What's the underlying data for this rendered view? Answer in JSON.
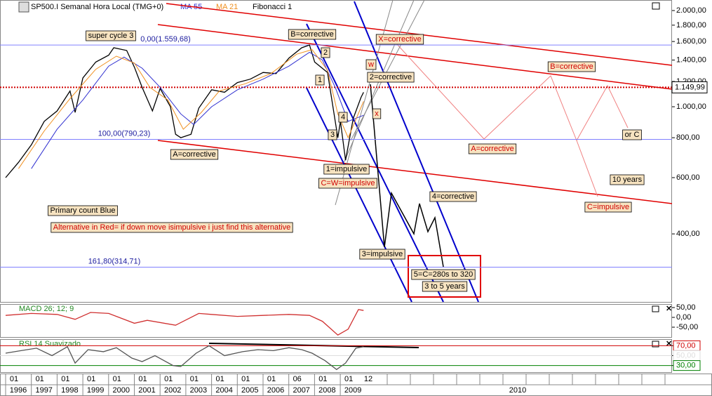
{
  "toolbar": {
    "fibonacci": "Fibonacci 1"
  },
  "chart_data": [
    {
      "type": "line",
      "title": "SP500.I Semanal Hora Local (TMG+0)",
      "log_scale": true,
      "xlim": [
        1996,
        2010
      ],
      "ylim": [
        245,
        2158
      ],
      "yticks": [
        {
          "value": 2000,
          "label": "2.000,00"
        },
        {
          "value": 1800,
          "label": "1.800,00"
        },
        {
          "value": 1600,
          "label": "1.600,00"
        },
        {
          "value": 1400,
          "label": "1.400,00"
        },
        {
          "value": 1200,
          "label": "1.200,00"
        },
        {
          "value": 1000,
          "label": "1.000,00"
        },
        {
          "value": 800,
          "label": "800,00"
        },
        {
          "value": 600,
          "label": "600,00"
        },
        {
          "value": 400,
          "label": "400,00"
        }
      ],
      "series": [
        {
          "color": "#000000",
          "x": [
            1996.0,
            1996.5,
            1997.0,
            1997.5,
            1998.0,
            1998.5,
            1998.7,
            1999.0,
            1999.5,
            2000.0,
            2000.2,
            2000.7,
            2001.0,
            2001.3,
            2001.7,
            2002.0,
            2002.4,
            2002.6,
            2002.8,
            2003.2,
            2003.5,
            2004.0,
            2004.5,
            2005.0,
            2005.5,
            2006.0,
            2006.5,
            2007.0,
            2007.5,
            2007.8,
            2008.0,
            2008.5,
            2008.8,
            2008.9,
            2009.0,
            2009.2,
            2009.5,
            2009.8,
            2009.9
          ],
          "values": [
            600,
            670,
            760,
            900,
            970,
            1120,
            960,
            1230,
            1380,
            1450,
            1530,
            1500,
            1330,
            1150,
            970,
            1140,
            1000,
            820,
            800,
            820,
            990,
            1130,
            1110,
            1190,
            1220,
            1280,
            1270,
            1420,
            1530,
            1560,
            1380,
            1280,
            900,
            800,
            900,
            680,
            920,
            1070,
            1110
          ]
        },
        {
          "name": "MA 55",
          "color": "#3030d0",
          "x": [
            1997.0,
            1998.0,
            1999.0,
            2000.0,
            2000.6,
            2001.3,
            2002.0,
            2002.8,
            2003.3,
            2004.0,
            2005.0,
            2006.0,
            2007.0,
            2007.8,
            2008.3,
            2008.8,
            2009.3,
            2009.9
          ],
          "values": [
            640,
            850,
            1050,
            1340,
            1430,
            1320,
            1150,
            950,
            880,
            1000,
            1130,
            1220,
            1340,
            1480,
            1400,
            1150,
            900,
            940
          ]
        },
        {
          "name": "MA 21",
          "color": "#f09020",
          "x": [
            1996.5,
            1997.5,
            1998.5,
            1999.5,
            2000.3,
            2001.0,
            2001.6,
            2002.3,
            2002.9,
            2003.6,
            2004.3,
            2005.3,
            2006.3,
            2007.3,
            2007.9,
            2008.5,
            2008.9,
            2009.3,
            2009.9
          ],
          "values": [
            640,
            840,
            1060,
            1310,
            1440,
            1370,
            1150,
            1050,
            850,
            960,
            1120,
            1180,
            1270,
            1460,
            1510,
            1300,
            950,
            800,
            1040
          ]
        }
      ],
      "fib_levels": [
        {
          "value": 1559.68,
          "label": "0,00(1.559,68)"
        },
        {
          "value": 790.23,
          "label": "100,00(790,23)"
        },
        {
          "value": 314.71,
          "label": "161,80(314,71)"
        }
      ],
      "last_price": {
        "value": 1149.99,
        "label": "1.149,99"
      },
      "annotations": [
        "super cycle 3",
        "B=corrective",
        "X=corrective",
        "2=corrective",
        "B=corrective",
        "w",
        "2",
        "1",
        "4",
        "3",
        "x",
        "A=corrective",
        "1=impulsive",
        "C=W=impulsive",
        "A=corrective",
        "or C",
        "10 years",
        "4=corrective",
        "C=impulsive",
        "Primary count Blue",
        "Alternative in Red= if down move isimpulsive i just find this alternative",
        "3=impulsive",
        "5=C=280s to 320",
        "3 to 5 years"
      ],
      "months": [
        "01",
        "01",
        "01",
        "01",
        "01",
        "01",
        "01",
        "01",
        "01",
        "01",
        "01",
        "06",
        "01",
        "01",
        "12"
      ],
      "years": [
        "1996",
        "1997",
        "1998",
        "1999",
        "2000",
        "2001",
        "2002",
        "2003",
        "2004",
        "2005",
        "2006",
        "2007",
        "2008",
        "2009",
        "2010"
      ]
    },
    {
      "type": "line",
      "title": "MACD 26; 12; 9",
      "xlim": [
        1996,
        2010
      ],
      "ylim": [
        -100,
        68
      ],
      "yticks": [
        {
          "value": 50,
          "label": "50,00"
        },
        {
          "value": 0,
          "label": "0,00"
        },
        {
          "value": -50,
          "label": "-50,00"
        }
      ],
      "series": [
        {
          "color": "#d03030",
          "x": [
            1996.0,
            1997.0,
            1998.0,
            1998.7,
            1999.3,
            2000.0,
            2001.0,
            2001.5,
            2002.6,
            2003.5,
            2004.0,
            2005.0,
            2006.0,
            2007.0,
            2007.8,
            2008.3,
            2008.9,
            2009.3,
            2009.7,
            2009.9
          ],
          "values": [
            10,
            20,
            15,
            -10,
            25,
            20,
            -30,
            -15,
            -40,
            20,
            15,
            5,
            10,
            15,
            10,
            -20,
            -90,
            -60,
            40,
            35
          ]
        }
      ]
    },
    {
      "type": "line",
      "title": "RSI 14 Suavizado",
      "xlim": [
        1996,
        2010
      ],
      "ylim": [
        16.7,
        83.3
      ],
      "yticks": [
        {
          "value": 70,
          "label": "70,00"
        },
        {
          "value": 50,
          "label": "50,00"
        },
        {
          "value": 30,
          "label": "30,00"
        }
      ],
      "tick_colors": [
        "#d00000",
        "#dddddd",
        "#008000"
      ],
      "series": [
        {
          "color": "#555555",
          "x": [
            1996.0,
            1996.6,
            1997.2,
            1997.8,
            1998.4,
            1998.7,
            1999.2,
            1999.8,
            2000.3,
            2000.9,
            2001.3,
            2001.8,
            2002.5,
            2002.8,
            2003.4,
            2003.9,
            2004.5,
            2005.2,
            2005.8,
            2006.4,
            2007.0,
            2007.5,
            2007.9,
            2008.4,
            2008.85,
            2009.2,
            2009.6,
            2009.9
          ],
          "values": [
            55,
            60,
            65,
            50,
            68,
            35,
            62,
            58,
            66,
            45,
            38,
            50,
            30,
            28,
            55,
            70,
            50,
            58,
            62,
            60,
            66,
            62,
            55,
            40,
            22,
            35,
            65,
            68
          ]
        }
      ]
    }
  ]
}
